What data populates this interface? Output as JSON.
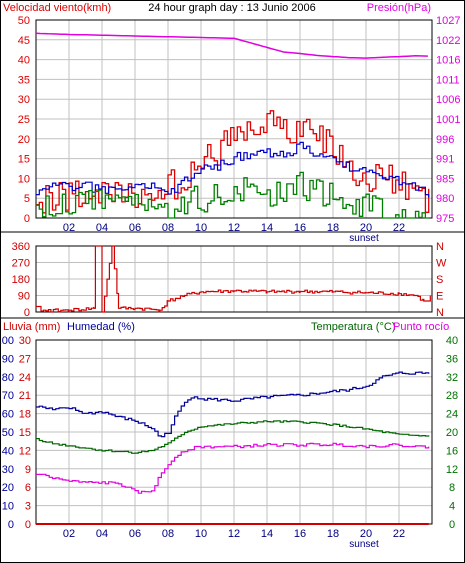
{
  "page_title": "24 hour graph day : 13 Junio 2006",
  "colors": {
    "wind": "#e00000",
    "wind_avg": "#0000cc",
    "gust": "#008000",
    "pressure": "#e000e0",
    "direction": "#d00000",
    "rain": "#d00000",
    "humidity": "#000099",
    "temperature": "#007000",
    "dewpoint": "#e000e0",
    "grid": "#c0c0c0",
    "frame": "#000000"
  },
  "chart_data": [
    {
      "type": "line",
      "title": "24 hour graph day : 13 Junio 2006",
      "left_axis_label": "Velocidad viento(kmh)",
      "right_axis_label": "Presión(hPa)",
      "x_ticks": [
        "02",
        "04",
        "06",
        "08",
        "10",
        "12",
        "14",
        "16",
        "18",
        "20",
        "22"
      ],
      "x_sunset_label": "sunset",
      "y_left_ticks": [
        "0",
        "5",
        "10",
        "15",
        "20",
        "25",
        "30",
        "35",
        "40",
        "45",
        "50"
      ],
      "y_right_ticks": [
        "975",
        "980",
        "985",
        "991",
        "996",
        "1001",
        "1006",
        "1011",
        "1016",
        "1022",
        "1027"
      ],
      "ylim": [
        0,
        50
      ],
      "series": [
        {
          "key": "wind_max",
          "color": "#e00000",
          "hours": [
            0,
            1,
            2,
            3,
            4,
            5,
            6,
            7,
            8,
            9,
            10,
            11,
            12,
            13,
            14,
            15,
            16,
            17,
            18,
            19,
            20,
            21,
            22,
            23,
            23.9
          ],
          "values": [
            8,
            9,
            10,
            10,
            9,
            9,
            10,
            10,
            12,
            13,
            17,
            21,
            24,
            25,
            28,
            25,
            26,
            24,
            22,
            16,
            14,
            15,
            12,
            10,
            9
          ]
        },
        {
          "key": "wind_avg",
          "color": "#0000cc",
          "hours": [
            0,
            1,
            2,
            3,
            4,
            5,
            6,
            7,
            8,
            9,
            10,
            11,
            12,
            13,
            14,
            15,
            16,
            17,
            18,
            19,
            20,
            21,
            22,
            23,
            23.9
          ],
          "values": [
            7,
            8,
            8,
            8,
            7,
            7,
            8,
            8,
            6,
            10,
            12,
            13,
            15,
            16,
            17,
            16,
            18,
            16,
            15,
            13,
            12,
            10,
            9,
            8,
            5
          ]
        },
        {
          "key": "gust",
          "color": "#008000",
          "hours": [
            0,
            1,
            2,
            3,
            4,
            5,
            6,
            7,
            8,
            9,
            10,
            11,
            12,
            13,
            14,
            15,
            16,
            17,
            18,
            19,
            20,
            21,
            22,
            23,
            23.9
          ],
          "values": [
            4,
            6,
            6,
            7,
            7,
            7,
            7,
            8,
            3,
            7,
            7,
            8,
            9,
            10,
            9,
            10,
            11,
            9,
            8,
            7,
            6,
            5,
            4,
            3,
            3
          ]
        },
        {
          "key": "pressure",
          "color": "#e000e0",
          "hours": [
            0,
            2,
            4,
            6,
            8,
            10,
            12,
            13,
            14,
            15,
            16,
            17,
            18,
            19,
            20,
            21,
            22,
            23,
            23.9
          ],
          "values": [
            1023.5,
            1023.2,
            1023.0,
            1022.8,
            1022.6,
            1022.4,
            1022.2,
            1021.0,
            1019.8,
            1018.6,
            1018.2,
            1017.7,
            1017.4,
            1017.1,
            1017.0,
            1017.2,
            1017.4,
            1017.6,
            1017.5
          ],
          "axis": "right",
          "ylim": [
            975,
            1027
          ]
        }
      ]
    },
    {
      "type": "line",
      "right_axis_label": "N W S E N",
      "x_ticks": [
        "02",
        "04",
        "06",
        "08",
        "10",
        "12",
        "14",
        "16",
        "18",
        "20",
        "22"
      ],
      "y_left_ticks": [
        "0",
        "90",
        "180",
        "270",
        "360"
      ],
      "ylim": [
        0,
        360
      ],
      "series": [
        {
          "key": "direction",
          "color": "#d00000",
          "hours": [
            0,
            0.3,
            2,
            3.5,
            3.6,
            3.9,
            4.0,
            4.6,
            5,
            6,
            7,
            7.5,
            8,
            9,
            10,
            12,
            14,
            16,
            18,
            20,
            22,
            23,
            23.5,
            23.9
          ],
          "values": [
            30,
            5,
            10,
            20,
            360,
            360,
            0,
            360,
            20,
            20,
            15,
            10,
            60,
            90,
            110,
            115,
            110,
            112,
            110,
            105,
            100,
            90,
            60,
            90
          ]
        }
      ]
    },
    {
      "type": "line",
      "left_axis_labels": [
        "Lluvia (mm)",
        "Humedad (%)"
      ],
      "right_axis_labels": [
        "Temperatura (°C)",
        "Punto rocío"
      ],
      "x_ticks": [
        "02",
        "04",
        "06",
        "08",
        "10",
        "12",
        "14",
        "16",
        "18",
        "20",
        "22"
      ],
      "x_sunset_label": "sunset",
      "y_rain_ticks": [
        "0",
        "3",
        "6",
        "9",
        "12",
        "15",
        "18",
        "21",
        "24",
        "27",
        "30"
      ],
      "y_humidity_ticks": [
        "0",
        "10",
        "20",
        "30",
        "40",
        "50",
        "60",
        "70",
        "80",
        "90",
        "100"
      ],
      "y_temp_ticks": [
        "0",
        "4",
        "8",
        "12",
        "16",
        "20",
        "24",
        "28",
        "32",
        "36",
        "40"
      ],
      "series": [
        {
          "key": "humidity",
          "color": "#000099",
          "hours": [
            0,
            1,
            2,
            3,
            4,
            5,
            6,
            7,
            7.5,
            8,
            8.5,
            9,
            9.5,
            10,
            12,
            14,
            16,
            18,
            19,
            20,
            21,
            22,
            23,
            23.9
          ],
          "values": [
            64,
            62,
            63,
            60,
            61,
            58,
            56,
            52,
            47,
            50,
            60,
            66,
            70,
            68,
            67,
            69,
            70,
            72,
            73,
            75,
            80,
            82,
            82,
            82
          ],
          "ylim": [
            0,
            100
          ]
        },
        {
          "key": "temperature",
          "color": "#006600",
          "hours": [
            0,
            1,
            2,
            3,
            4,
            5,
            6,
            7,
            8,
            9,
            10,
            12,
            14,
            16,
            18,
            20,
            21,
            22,
            23,
            23.9
          ],
          "values": [
            18.5,
            17.5,
            17.0,
            16.5,
            16.0,
            15.8,
            15.5,
            16.0,
            17.5,
            20.0,
            21.2,
            21.8,
            22.3,
            22.2,
            21.6,
            20.6,
            20.0,
            19.4,
            19.2,
            19.2
          ],
          "ylim": [
            0,
            40
          ]
        },
        {
          "key": "dewpoint",
          "color": "#e000e0",
          "hours": [
            0,
            1,
            2,
            3,
            4,
            5,
            6,
            6.5,
            7,
            7.5,
            8,
            8.5,
            9,
            9.5,
            10,
            12,
            14,
            16,
            18,
            20,
            22,
            23,
            23.9
          ],
          "values": [
            11.0,
            10.0,
            9.3,
            9.0,
            9.0,
            8.8,
            7.0,
            6.8,
            7.3,
            10.5,
            13.0,
            15.0,
            16.0,
            16.5,
            16.8,
            16.8,
            17.2,
            17.2,
            17.3,
            16.9,
            17.2,
            16.8,
            16.8
          ],
          "ylim": [
            0,
            40
          ]
        },
        {
          "key": "rain",
          "color": "#d00000",
          "hours": [
            0,
            23.9
          ],
          "values": [
            0,
            0
          ],
          "ylim": [
            0,
            30
          ]
        }
      ]
    }
  ]
}
